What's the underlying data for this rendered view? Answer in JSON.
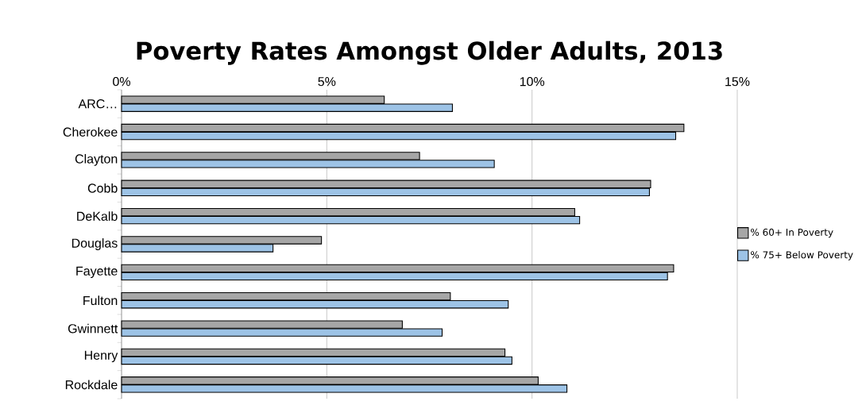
{
  "chart_data": {
    "type": "bar",
    "orientation": "horizontal",
    "title": "Poverty Rates Amongst Older Adults, 2013",
    "categories": [
      "ARC…",
      "Cherokee",
      "Clayton",
      "Cobb",
      "DeKalb",
      "Douglas",
      "Fayette",
      "Fulton",
      "Gwinnett",
      "Henry",
      "Rockdale"
    ],
    "series": [
      {
        "name": "% 60+ In Poverty",
        "color": "#a6a6a6",
        "values": [
          6.4,
          13.7,
          7.26,
          12.89,
          11.04,
          4.87,
          13.45,
          8.01,
          6.84,
          9.34,
          10.15
        ]
      },
      {
        "name": "% 75+ Below Poverty",
        "color": "#9dc3e6",
        "values": [
          8.06,
          13.5,
          9.08,
          12.86,
          11.16,
          3.69,
          13.3,
          9.42,
          7.81,
          9.51,
          10.85
        ]
      }
    ],
    "xlim": [
      0,
      15
    ],
    "xticks": [
      {
        "value": 0,
        "label": "0%"
      },
      {
        "value": 5,
        "label": "5%"
      },
      {
        "value": 10,
        "label": "10%"
      },
      {
        "value": 15,
        "label": "15%"
      }
    ],
    "grid": "x",
    "legend": "right"
  }
}
